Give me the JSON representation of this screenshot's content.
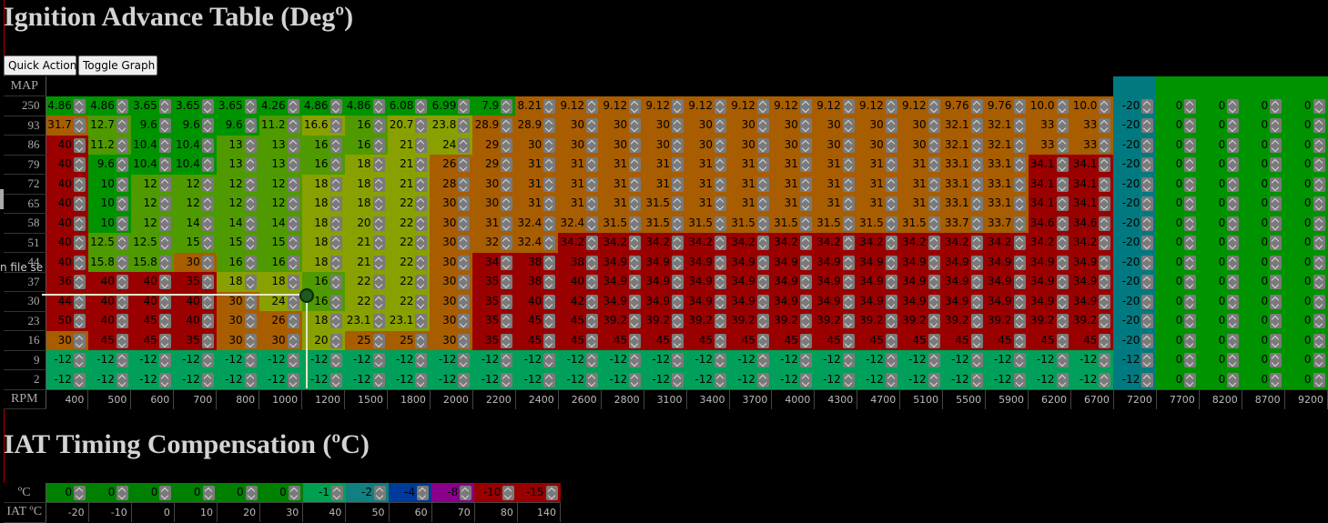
{
  "ignition": {
    "title": "Ignition Advance Table (Degº)",
    "corner_label": "MAP",
    "rpm_label": "RPM",
    "rpm": [
      "400",
      "500",
      "600",
      "700",
      "800",
      "1000",
      "1200",
      "1500",
      "1800",
      "2000",
      "2200",
      "2400",
      "2600",
      "2800",
      "3100",
      "3400",
      "3700",
      "4000",
      "4300",
      "4700",
      "5100",
      "5500",
      "5900",
      "6200",
      "6700",
      "7200",
      "7700",
      "8200",
      "8700",
      "9200"
    ],
    "rows": [
      {
        "map": "250",
        "values": [
          "4.86",
          "4.86",
          "3.65",
          "3.65",
          "3.65",
          "4.26",
          "4.86",
          "4.86",
          "6.08",
          "6.99",
          "7.9",
          "8.21",
          "9.12",
          "9.12",
          "9.12",
          "9.12",
          "9.12",
          "9.12",
          "9.12",
          "9.12",
          "9.12",
          "9.76",
          "9.76",
          "10.0",
          "10.0",
          "-20",
          "0",
          "0",
          "0",
          "0"
        ]
      },
      {
        "map": "93",
        "values": [
          "31.7",
          "12.7",
          "9.6",
          "9.6",
          "9.6",
          "11.2",
          "16.6",
          "16",
          "20.7",
          "23.8",
          "28.9",
          "28.9",
          "30",
          "30",
          "30",
          "30",
          "30",
          "30",
          "30",
          "30",
          "30",
          "32.1",
          "32.1",
          "33",
          "33",
          "-20",
          "0",
          "0",
          "0",
          "0"
        ]
      },
      {
        "map": "86",
        "values": [
          "40",
          "11.2",
          "10.4",
          "10.4",
          "13",
          "13",
          "16",
          "16",
          "21",
          "24",
          "29",
          "30",
          "30",
          "30",
          "30",
          "30",
          "30",
          "30",
          "30",
          "30",
          "30",
          "32.1",
          "32.1",
          "33",
          "33",
          "-20",
          "0",
          "0",
          "0",
          "0"
        ]
      },
      {
        "map": "79",
        "values": [
          "40",
          "9.6",
          "10.4",
          "10.4",
          "13",
          "13",
          "16",
          "18",
          "21",
          "26",
          "29",
          "31",
          "31",
          "31",
          "31",
          "31",
          "31",
          "31",
          "31",
          "31",
          "31",
          "33.1",
          "33.1",
          "34.1",
          "34.1",
          "-20",
          "0",
          "0",
          "0",
          "0"
        ]
      },
      {
        "map": "72",
        "values": [
          "40",
          "10",
          "12",
          "12",
          "12",
          "12",
          "18",
          "18",
          "21",
          "28",
          "30",
          "31",
          "31",
          "31",
          "31",
          "31",
          "31",
          "31",
          "31",
          "31",
          "31",
          "33.1",
          "33.1",
          "34.1",
          "34.1",
          "-20",
          "0",
          "0",
          "0",
          "0"
        ]
      },
      {
        "map": "65",
        "values": [
          "40",
          "10",
          "12",
          "12",
          "12",
          "12",
          "18",
          "18",
          "22",
          "30",
          "30",
          "31",
          "31",
          "31",
          "31.5",
          "31",
          "31",
          "31",
          "31",
          "31",
          "31",
          "33.1",
          "33.1",
          "34.1",
          "34.1",
          "-20",
          "0",
          "0",
          "0",
          "0"
        ]
      },
      {
        "map": "58",
        "values": [
          "40",
          "10",
          "12",
          "14",
          "14",
          "14",
          "18",
          "20",
          "22",
          "30",
          "31",
          "32.4",
          "32.4",
          "31.5",
          "31.5",
          "31.5",
          "31.5",
          "31.5",
          "31.5",
          "31.5",
          "31.5",
          "33.7",
          "33.7",
          "34.6",
          "34.6",
          "-20",
          "0",
          "0",
          "0",
          "0"
        ]
      },
      {
        "map": "51",
        "values": [
          "40",
          "12.5",
          "12.5",
          "15",
          "15",
          "15",
          "18",
          "21",
          "22",
          "30",
          "32",
          "32.4",
          "34.2",
          "34.2",
          "34.2",
          "34.2",
          "34.2",
          "34.2",
          "34.2",
          "34.2",
          "34.2",
          "34.2",
          "34.2",
          "34.2",
          "34.2",
          "-20",
          "0",
          "0",
          "0",
          "0"
        ]
      },
      {
        "map": "44",
        "values": [
          "40",
          "15.8",
          "15.8",
          "30",
          "16",
          "16",
          "18",
          "21",
          "22",
          "30",
          "34",
          "38",
          "38",
          "34.9",
          "34.9",
          "34.9",
          "34.9",
          "34.9",
          "34.9",
          "34.9",
          "34.9",
          "34.9",
          "34.9",
          "34.9",
          "34.9",
          "-20",
          "0",
          "0",
          "0",
          "0"
        ]
      },
      {
        "map": "37",
        "values": [
          "36",
          "40",
          "40",
          "35",
          "18",
          "18",
          "16",
          "22",
          "22",
          "30",
          "35",
          "38",
          "40",
          "34.9",
          "34.9",
          "34.9",
          "34.9",
          "34.9",
          "34.9",
          "34.9",
          "34.9",
          "34.9",
          "34.9",
          "34.9",
          "34.9",
          "-20",
          "0",
          "0",
          "0",
          "0"
        ]
      },
      {
        "map": "30",
        "values": [
          "44",
          "40",
          "40",
          "40",
          "30",
          "24",
          "16",
          "22",
          "22",
          "30",
          "35",
          "40",
          "42",
          "34.9",
          "34.9",
          "34.9",
          "34.9",
          "34.9",
          "34.9",
          "34.9",
          "34.9",
          "34.9",
          "34.9",
          "34.9",
          "34.9",
          "-20",
          "0",
          "0",
          "0",
          "0"
        ]
      },
      {
        "map": "23",
        "values": [
          "50",
          "40",
          "45",
          "40",
          "30",
          "26",
          "18",
          "23.1",
          "23.1",
          "30",
          "35",
          "45",
          "45",
          "39.2",
          "39.2",
          "39.2",
          "39.2",
          "39.2",
          "39.2",
          "39.2",
          "39.2",
          "39.2",
          "39.2",
          "39.2",
          "39.2",
          "-20",
          "0",
          "0",
          "0",
          "0"
        ]
      },
      {
        "map": "16",
        "values": [
          "30",
          "45",
          "45",
          "35",
          "30",
          "30",
          "20",
          "25",
          "25",
          "30",
          "35",
          "45",
          "45",
          "45",
          "45",
          "45",
          "45",
          "45",
          "45",
          "45",
          "45",
          "45",
          "45",
          "45",
          "45",
          "-20",
          "0",
          "0",
          "0",
          "0"
        ]
      },
      {
        "map": "9",
        "values": [
          "-12",
          "-12",
          "-12",
          "-12",
          "-12",
          "-12",
          "-12",
          "-12",
          "-12",
          "-12",
          "-12",
          "-12",
          "-12",
          "-12",
          "-12",
          "-12",
          "-12",
          "-12",
          "-12",
          "-12",
          "-12",
          "-12",
          "-12",
          "-12",
          "-12",
          "-12",
          "0",
          "0",
          "0",
          "0"
        ]
      },
      {
        "map": "2",
        "values": [
          "-12",
          "-12",
          "-12",
          "-12",
          "-12",
          "-12",
          "-12",
          "-12",
          "-12",
          "-12",
          "-12",
          "-12",
          "-12",
          "-12",
          "-12",
          "-12",
          "-12",
          "-12",
          "-12",
          "-12",
          "-12",
          "-12",
          "-12",
          "-12",
          "-12",
          "-12",
          "0",
          "0",
          "0",
          "0"
        ]
      }
    ]
  },
  "buttons": {
    "quick_action": "Quick Action",
    "toggle_graph": "Toggle Graph"
  },
  "side_text": "n file se",
  "iat": {
    "title": "IAT Timing Compensation (ºC)",
    "row_label": "ºC",
    "axis_label": "IAT ºC",
    "values": [
      "0",
      "0",
      "0",
      "0",
      "0",
      "0",
      "-1",
      "-2",
      "-4",
      "-8",
      "-10",
      "-15"
    ],
    "temps": [
      "-20",
      "-10",
      "0",
      "10",
      "20",
      "30",
      "40",
      "50",
      "60",
      "70",
      "80",
      "140"
    ],
    "colors": [
      "#008000",
      "#008000",
      "#008000",
      "#008000",
      "#008000",
      "#008000",
      "#00a050",
      "#108080",
      "#003a9a",
      "#8a008a",
      "#9a0000",
      "#9a0000"
    ]
  },
  "colors": {
    "green": "#009300",
    "lime": "#4f9a00",
    "olive": "#8aa000",
    "orange": "#a85d00",
    "red": "#9a0000",
    "teal": "#007a80",
    "seagreen": "#00a05a",
    "cursor": "#e6e6c8"
  }
}
